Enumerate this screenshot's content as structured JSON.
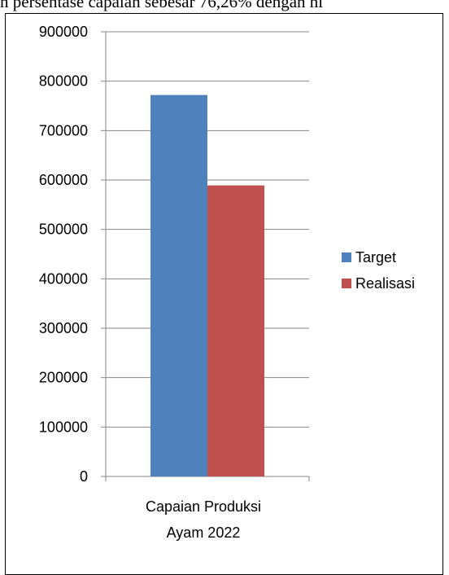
{
  "page": {
    "top_text": "n persentase capaian sebesar 76,26% dengan ni"
  },
  "chart_data": {
    "type": "bar",
    "categories": [
      "Capaian Produksi Ayam 2022"
    ],
    "category_lines": [
      "Capaian Produksi",
      "Ayam 2022"
    ],
    "series": [
      {
        "name": "Target",
        "values": [
          772000
        ],
        "color": "#4F81BD"
      },
      {
        "name": "Realisasi",
        "values": [
          589000
        ],
        "color": "#C0504D"
      }
    ],
    "title": "",
    "xlabel": "",
    "ylabel": "",
    "ylim": [
      0,
      900000
    ],
    "yticks": [
      "0",
      "100000",
      "200000",
      "300000",
      "400000",
      "500000",
      "600000",
      "700000",
      "800000",
      "900000"
    ],
    "grid": true,
    "legend_position": "right"
  }
}
